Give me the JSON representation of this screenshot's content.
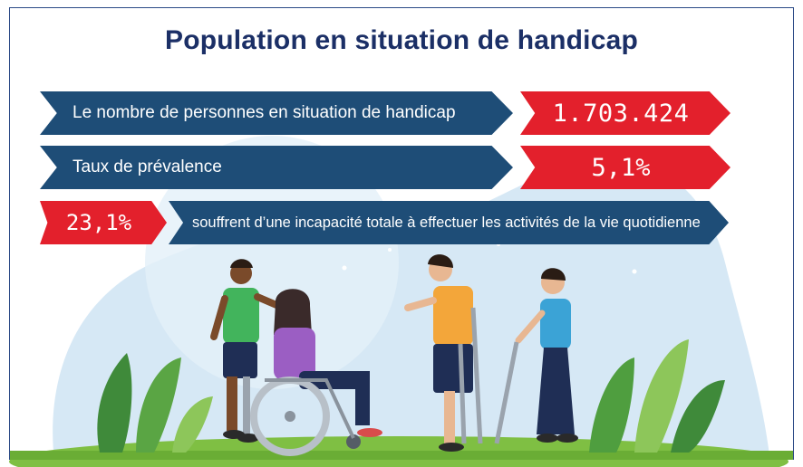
{
  "title": "Population en situation de handicap",
  "stats": [
    {
      "label": "Le nombre de personnes en situation de handicap",
      "value": "1.703.424"
    },
    {
      "label": "Taux de prévalence",
      "value": "5,1%"
    },
    {
      "label": "souffrent d’une incapacité totale à effectuer les activités de la vie quotidienne",
      "value": "23,1%"
    }
  ],
  "colors": {
    "title": "#1b2f66",
    "banner_blue": "#1e4d77",
    "banner_red": "#e3202c",
    "frame": "#2b4a86"
  },
  "illustration": {
    "subject": "people-with-disabilities-group-icon"
  }
}
